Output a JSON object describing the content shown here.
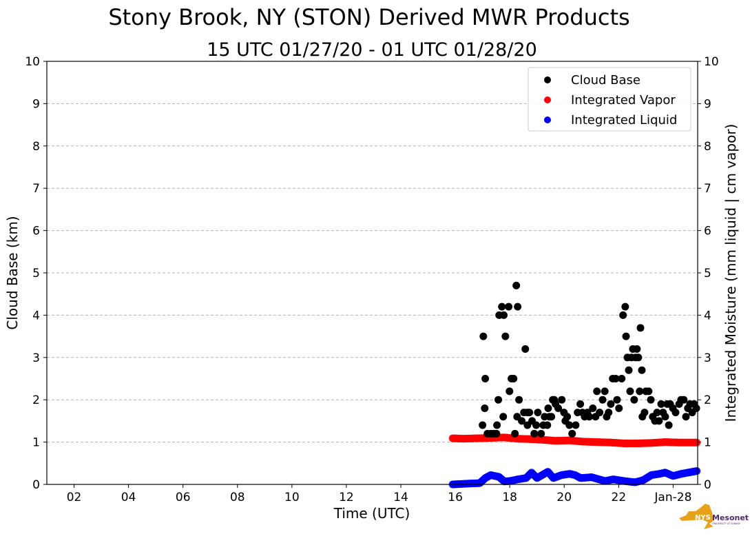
{
  "chart_data": {
    "type": "scatter",
    "title": "Stony Brook, NY (STON) Derived MWR Products",
    "subtitle": "15 UTC 01/27/20 - 01 UTC 01/28/20",
    "xlabel": "Time (UTC)",
    "ylabel": "Cloud Base (km)",
    "ylabel_right": "Integrated Moisture (mm liquid | cm vapor)",
    "x_unit": "hours since 00 UTC 01/27/20",
    "xlim": [
      1,
      24.9
    ],
    "ylim": [
      0,
      10
    ],
    "grid": "horizontal dashed",
    "legend_position": "top-right",
    "x_ticks": [
      {
        "x": 2,
        "label": "02"
      },
      {
        "x": 4,
        "label": "04"
      },
      {
        "x": 6,
        "label": "06"
      },
      {
        "x": 8,
        "label": "08"
      },
      {
        "x": 10,
        "label": "10"
      },
      {
        "x": 12,
        "label": "12"
      },
      {
        "x": 14,
        "label": "14"
      },
      {
        "x": 16,
        "label": "16"
      },
      {
        "x": 18,
        "label": "18"
      },
      {
        "x": 20,
        "label": "20"
      },
      {
        "x": 22,
        "label": "22"
      },
      {
        "x": 24,
        "label": "Jan-28"
      }
    ],
    "y_ticks": [
      "0",
      "1",
      "2",
      "3",
      "4",
      "5",
      "6",
      "7",
      "8",
      "9",
      "10"
    ],
    "series": [
      {
        "name": "Cloud Base",
        "color": "#000000",
        "points": [
          [
            17.03,
            3.5
          ],
          [
            17.1,
            2.5
          ],
          [
            17.08,
            1.8
          ],
          [
            17.0,
            1.4
          ],
          [
            17.18,
            1.2
          ],
          [
            17.3,
            1.2
          ],
          [
            17.4,
            1.2
          ],
          [
            17.51,
            1.2
          ],
          [
            17.53,
            1.4
          ],
          [
            17.58,
            2.0
          ],
          [
            17.61,
            4.0
          ],
          [
            17.71,
            4.2
          ],
          [
            17.78,
            4.0
          ],
          [
            17.84,
            3.5
          ],
          [
            17.76,
            1.6
          ],
          [
            17.96,
            4.2
          ],
          [
            17.99,
            2.2
          ],
          [
            18.06,
            2.5
          ],
          [
            18.14,
            2.5
          ],
          [
            18.19,
            1.2
          ],
          [
            18.24,
            4.7
          ],
          [
            18.29,
            4.2
          ],
          [
            18.27,
            1.6
          ],
          [
            18.34,
            2.0
          ],
          [
            18.44,
            1.5
          ],
          [
            18.57,
            3.2
          ],
          [
            18.52,
            1.7
          ],
          [
            18.65,
            1.7
          ],
          [
            18.72,
            1.7
          ],
          [
            18.65,
            1.4
          ],
          [
            18.82,
            1.5
          ],
          [
            18.9,
            1.2
          ],
          [
            18.97,
            1.4
          ],
          [
            19.03,
            1.7
          ],
          [
            19.15,
            1.2
          ],
          [
            19.23,
            1.4
          ],
          [
            19.28,
            1.6
          ],
          [
            19.38,
            1.4
          ],
          [
            19.41,
            1.8
          ],
          [
            19.46,
            1.6
          ],
          [
            19.53,
            1.6
          ],
          [
            19.58,
            2.0
          ],
          [
            19.63,
            2.0
          ],
          [
            19.68,
            1.9
          ],
          [
            19.78,
            1.8
          ],
          [
            19.91,
            2.0
          ],
          [
            19.99,
            1.7
          ],
          [
            20.04,
            1.5
          ],
          [
            20.11,
            1.6
          ],
          [
            20.19,
            1.4
          ],
          [
            20.29,
            1.2
          ],
          [
            20.42,
            1.4
          ],
          [
            20.49,
            1.7
          ],
          [
            20.59,
            1.9
          ],
          [
            20.67,
            1.7
          ],
          [
            20.75,
            1.6
          ],
          [
            20.85,
            1.7
          ],
          [
            20.92,
            1.6
          ],
          [
            21.05,
            1.8
          ],
          [
            21.15,
            1.6
          ],
          [
            21.2,
            2.2
          ],
          [
            21.3,
            1.7
          ],
          [
            21.41,
            2.0
          ],
          [
            21.49,
            2.2
          ],
          [
            21.56,
            1.6
          ],
          [
            21.63,
            1.7
          ],
          [
            21.71,
            1.9
          ],
          [
            21.78,
            2.5
          ],
          [
            21.89,
            2.5
          ],
          [
            21.94,
            2.0
          ],
          [
            22.01,
            1.8
          ],
          [
            22.11,
            2.5
          ],
          [
            22.16,
            4.0
          ],
          [
            22.24,
            4.2
          ],
          [
            22.27,
            3.5
          ],
          [
            22.32,
            3.0
          ],
          [
            22.37,
            2.7
          ],
          [
            22.42,
            2.2
          ],
          [
            22.47,
            3.0
          ],
          [
            22.52,
            3.2
          ],
          [
            22.57,
            2.0
          ],
          [
            22.62,
            3.0
          ],
          [
            22.67,
            3.2
          ],
          [
            22.72,
            3.0
          ],
          [
            22.77,
            2.2
          ],
          [
            22.8,
            3.7
          ],
          [
            22.85,
            2.7
          ],
          [
            22.87,
            1.6
          ],
          [
            22.95,
            1.7
          ],
          [
            23.0,
            2.2
          ],
          [
            23.1,
            2.2
          ],
          [
            23.18,
            2.0
          ],
          [
            23.25,
            1.6
          ],
          [
            23.33,
            1.5
          ],
          [
            23.41,
            1.7
          ],
          [
            23.48,
            1.5
          ],
          [
            23.56,
            1.9
          ],
          [
            23.63,
            1.7
          ],
          [
            23.71,
            1.6
          ],
          [
            23.78,
            1.9
          ],
          [
            23.84,
            1.4
          ],
          [
            23.89,
            1.9
          ],
          [
            23.99,
            1.8
          ],
          [
            24.09,
            1.7
          ],
          [
            24.22,
            1.9
          ],
          [
            24.29,
            2.0
          ],
          [
            24.39,
            2.0
          ],
          [
            24.47,
            1.6
          ],
          [
            24.54,
            1.8
          ],
          [
            24.62,
            1.9
          ],
          [
            24.7,
            1.7
          ],
          [
            24.77,
            1.9
          ],
          [
            24.85,
            1.8
          ]
        ]
      },
      {
        "name": "Integrated Vapor",
        "color": "#ff0000",
        "points": [
          [
            15.9,
            1.09
          ],
          [
            16.3,
            1.08
          ],
          [
            16.8,
            1.09
          ],
          [
            17.3,
            1.1
          ],
          [
            17.8,
            1.11
          ],
          [
            18.3,
            1.08
          ],
          [
            18.8,
            1.07
          ],
          [
            19.3,
            1.05
          ],
          [
            19.7,
            1.03
          ],
          [
            20.2,
            1.04
          ],
          [
            20.7,
            1.01
          ],
          [
            21.2,
            1.0
          ],
          [
            21.7,
            0.99
          ],
          [
            22.2,
            0.97
          ],
          [
            22.7,
            0.97
          ],
          [
            23.2,
            0.98
          ],
          [
            23.7,
            1.0
          ],
          [
            24.2,
            0.99
          ],
          [
            24.9,
            0.99
          ]
        ]
      },
      {
        "name": "Integrated Liquid",
        "color": "#0000ff",
        "points": [
          [
            15.9,
            0.0
          ],
          [
            16.5,
            0.02
          ],
          [
            16.9,
            0.03
          ],
          [
            17.1,
            0.15
          ],
          [
            17.3,
            0.22
          ],
          [
            17.6,
            0.18
          ],
          [
            17.8,
            0.07
          ],
          [
            18.0,
            0.08
          ],
          [
            18.3,
            0.12
          ],
          [
            18.6,
            0.15
          ],
          [
            18.8,
            0.28
          ],
          [
            19.0,
            0.15
          ],
          [
            19.4,
            0.3
          ],
          [
            19.6,
            0.15
          ],
          [
            19.9,
            0.22
          ],
          [
            20.2,
            0.25
          ],
          [
            20.4,
            0.22
          ],
          [
            20.6,
            0.15
          ],
          [
            21.0,
            0.17
          ],
          [
            21.5,
            0.08
          ],
          [
            21.8,
            0.12
          ],
          [
            22.2,
            0.08
          ],
          [
            22.6,
            0.05
          ],
          [
            22.9,
            0.1
          ],
          [
            23.2,
            0.22
          ],
          [
            23.5,
            0.25
          ],
          [
            23.7,
            0.28
          ],
          [
            24.0,
            0.2
          ],
          [
            24.3,
            0.25
          ],
          [
            24.9,
            0.32
          ]
        ]
      }
    ]
  },
  "logo": {
    "text": "NYS Mesonet",
    "subtext": "UNIVERSITY AT ALBANY"
  }
}
